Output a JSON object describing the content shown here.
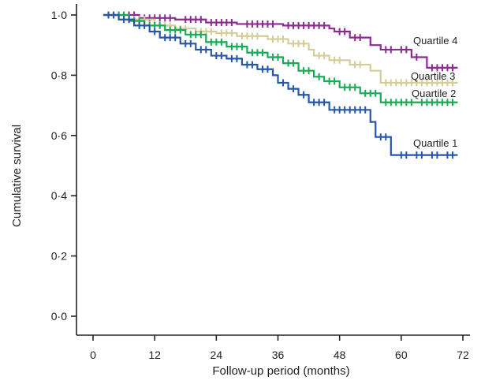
{
  "chart_data": {
    "type": "line",
    "subtype": "kaplan-meier step",
    "xlabel": "Follow-up period (months)",
    "ylabel": "Cumulative survival",
    "xlim": [
      0,
      72
    ],
    "ylim": [
      0,
      1
    ],
    "x_ticks": [
      0,
      12,
      24,
      36,
      48,
      60,
      72
    ],
    "x_tick_labels": [
      "0",
      "12",
      "24",
      "36",
      "48",
      "60",
      "72"
    ],
    "y_ticks": [
      0.0,
      0.2,
      0.4,
      0.6,
      0.8,
      1.0
    ],
    "y_tick_labels": [
      "0·0",
      "0·2",
      "0·4",
      "0·6",
      "0·8",
      "1·0"
    ],
    "grid": false,
    "legend": "inline labels at right end of curves",
    "series": [
      {
        "name": "Quartile 4",
        "color": "#8b2a8f",
        "steps": [
          [
            2,
            1.0
          ],
          [
            9,
            0.99
          ],
          [
            16,
            0.985
          ],
          [
            22,
            0.975
          ],
          [
            28,
            0.97
          ],
          [
            37,
            0.965
          ],
          [
            46,
            0.955
          ],
          [
            47,
            0.945
          ],
          [
            50,
            0.925
          ],
          [
            54,
            0.9
          ],
          [
            56,
            0.885
          ],
          [
            62,
            0.86
          ],
          [
            65,
            0.825
          ],
          [
            71,
            0.825
          ]
        ],
        "censor_x": [
          4,
          5,
          6,
          7,
          8,
          10,
          11,
          12,
          13,
          14,
          15,
          18,
          19,
          20,
          21,
          23,
          24,
          25,
          26,
          27,
          30,
          31,
          32,
          33,
          34,
          35,
          38,
          39,
          40,
          41,
          42,
          43,
          44,
          45,
          48,
          49,
          51,
          52,
          57,
          58,
          60,
          61,
          63,
          66,
          67,
          68,
          69,
          70
        ]
      },
      {
        "name": "Quartile 3",
        "color": "#d4cc9a",
        "steps": [
          [
            2,
            1.0
          ],
          [
            6,
            0.985
          ],
          [
            12,
            0.965
          ],
          [
            16,
            0.955
          ],
          [
            20,
            0.945
          ],
          [
            24,
            0.94
          ],
          [
            28,
            0.93
          ],
          [
            34,
            0.92
          ],
          [
            38,
            0.905
          ],
          [
            42,
            0.885
          ],
          [
            43,
            0.865
          ],
          [
            46,
            0.85
          ],
          [
            50,
            0.835
          ],
          [
            54,
            0.815
          ],
          [
            56,
            0.775
          ],
          [
            71,
            0.775
          ]
        ],
        "censor_x": [
          3,
          4,
          5,
          7,
          8,
          9,
          10,
          13,
          14,
          15,
          17,
          18,
          21,
          22,
          23,
          25,
          26,
          27,
          29,
          30,
          31,
          32,
          35,
          36,
          37,
          39,
          40,
          41,
          44,
          45,
          47,
          48,
          51,
          52,
          57,
          58,
          59,
          60,
          61,
          62,
          63,
          64,
          65,
          66,
          67,
          68,
          69,
          70
        ]
      },
      {
        "name": "Quartile 2",
        "color": "#1aaa55",
        "steps": [
          [
            2,
            1.0
          ],
          [
            7,
            0.98
          ],
          [
            10,
            0.965
          ],
          [
            14,
            0.95
          ],
          [
            18,
            0.935
          ],
          [
            22,
            0.91
          ],
          [
            26,
            0.895
          ],
          [
            30,
            0.875
          ],
          [
            34,
            0.86
          ],
          [
            37,
            0.84
          ],
          [
            40,
            0.815
          ],
          [
            43,
            0.795
          ],
          [
            45,
            0.78
          ],
          [
            48,
            0.76
          ],
          [
            52,
            0.74
          ],
          [
            56,
            0.71
          ],
          [
            71,
            0.71
          ]
        ],
        "censor_x": [
          3,
          4,
          5,
          6,
          8,
          9,
          11,
          12,
          13,
          15,
          16,
          17,
          19,
          20,
          21,
          23,
          24,
          25,
          27,
          28,
          29,
          31,
          32,
          33,
          35,
          36,
          38,
          39,
          41,
          42,
          44,
          46,
          47,
          49,
          50,
          51,
          53,
          54,
          55,
          57,
          58,
          59,
          60,
          61,
          62,
          64,
          65,
          66,
          67,
          68,
          69,
          70
        ]
      },
      {
        "name": "Quartile 1",
        "color": "#2656a8",
        "steps": [
          [
            2,
            1.0
          ],
          [
            5,
            0.985
          ],
          [
            8,
            0.965
          ],
          [
            11,
            0.945
          ],
          [
            13,
            0.925
          ],
          [
            17,
            0.905
          ],
          [
            20,
            0.885
          ],
          [
            23,
            0.865
          ],
          [
            26,
            0.855
          ],
          [
            29,
            0.835
          ],
          [
            32,
            0.82
          ],
          [
            35,
            0.8
          ],
          [
            36,
            0.775
          ],
          [
            38,
            0.755
          ],
          [
            40,
            0.735
          ],
          [
            42,
            0.71
          ],
          [
            46,
            0.685
          ],
          [
            54,
            0.645
          ],
          [
            55,
            0.595
          ],
          [
            58,
            0.535
          ],
          [
            71,
            0.535
          ]
        ],
        "censor_x": [
          3,
          4,
          6,
          7,
          9,
          10,
          12,
          14,
          15,
          16,
          18,
          19,
          21,
          22,
          24,
          25,
          27,
          28,
          30,
          31,
          33,
          34,
          37,
          39,
          41,
          43,
          44,
          45,
          47,
          48,
          49,
          50,
          51,
          52,
          53,
          56,
          57,
          60,
          61,
          63,
          64,
          66,
          67,
          69,
          70
        ]
      }
    ]
  }
}
